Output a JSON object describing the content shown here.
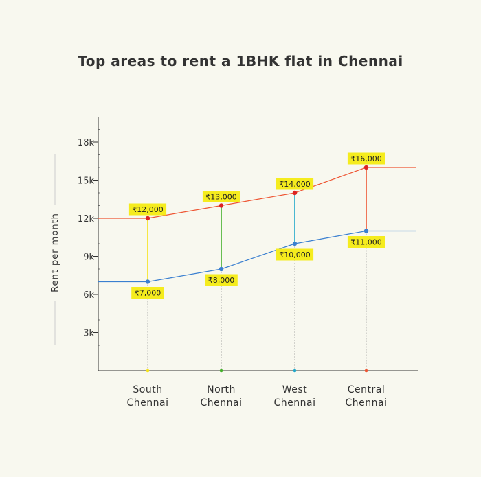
{
  "chart_data": {
    "type": "line",
    "title": "Top areas to rent a 1BHK flat in Chennai",
    "xlabel": "",
    "ylabel": "Rent per month",
    "categories": [
      "South Chennai",
      "North Chennai",
      "West Chennai",
      "Central Chennai"
    ],
    "category_lines": [
      [
        "South",
        "Chennai"
      ],
      [
        "North",
        "Chennai"
      ],
      [
        "West",
        "Chennai"
      ],
      [
        "Central",
        "Chennai"
      ]
    ],
    "ylim": [
      0,
      20000
    ],
    "yticks": [
      3000,
      6000,
      9000,
      12000,
      15000,
      18000
    ],
    "ytick_labels": [
      "3k",
      "6k",
      "9k",
      "12k",
      "15k",
      "18k"
    ],
    "series": [
      {
        "key": "upper",
        "values": [
          12000,
          13000,
          14000,
          16000
        ],
        "value_labels": [
          "₹12,000",
          "₹13,000",
          "₹14,000",
          "₹16,000"
        ],
        "color": "#ee5533",
        "marker_color": "#dd2222"
      },
      {
        "key": "lower",
        "values": [
          7000,
          8000,
          10000,
          11000
        ],
        "value_labels": [
          "₹7,000",
          "₹8,000",
          "₹10,000",
          "₹11,000"
        ],
        "color": "#3a7fd0",
        "marker_color": "#3a7fd0"
      }
    ],
    "connector_colors": [
      "#f5e31a",
      "#44b02a",
      "#1fa7c9",
      "#ee5533"
    ],
    "label_background": "#f5ec1e",
    "grid": false,
    "legend": "none"
  }
}
